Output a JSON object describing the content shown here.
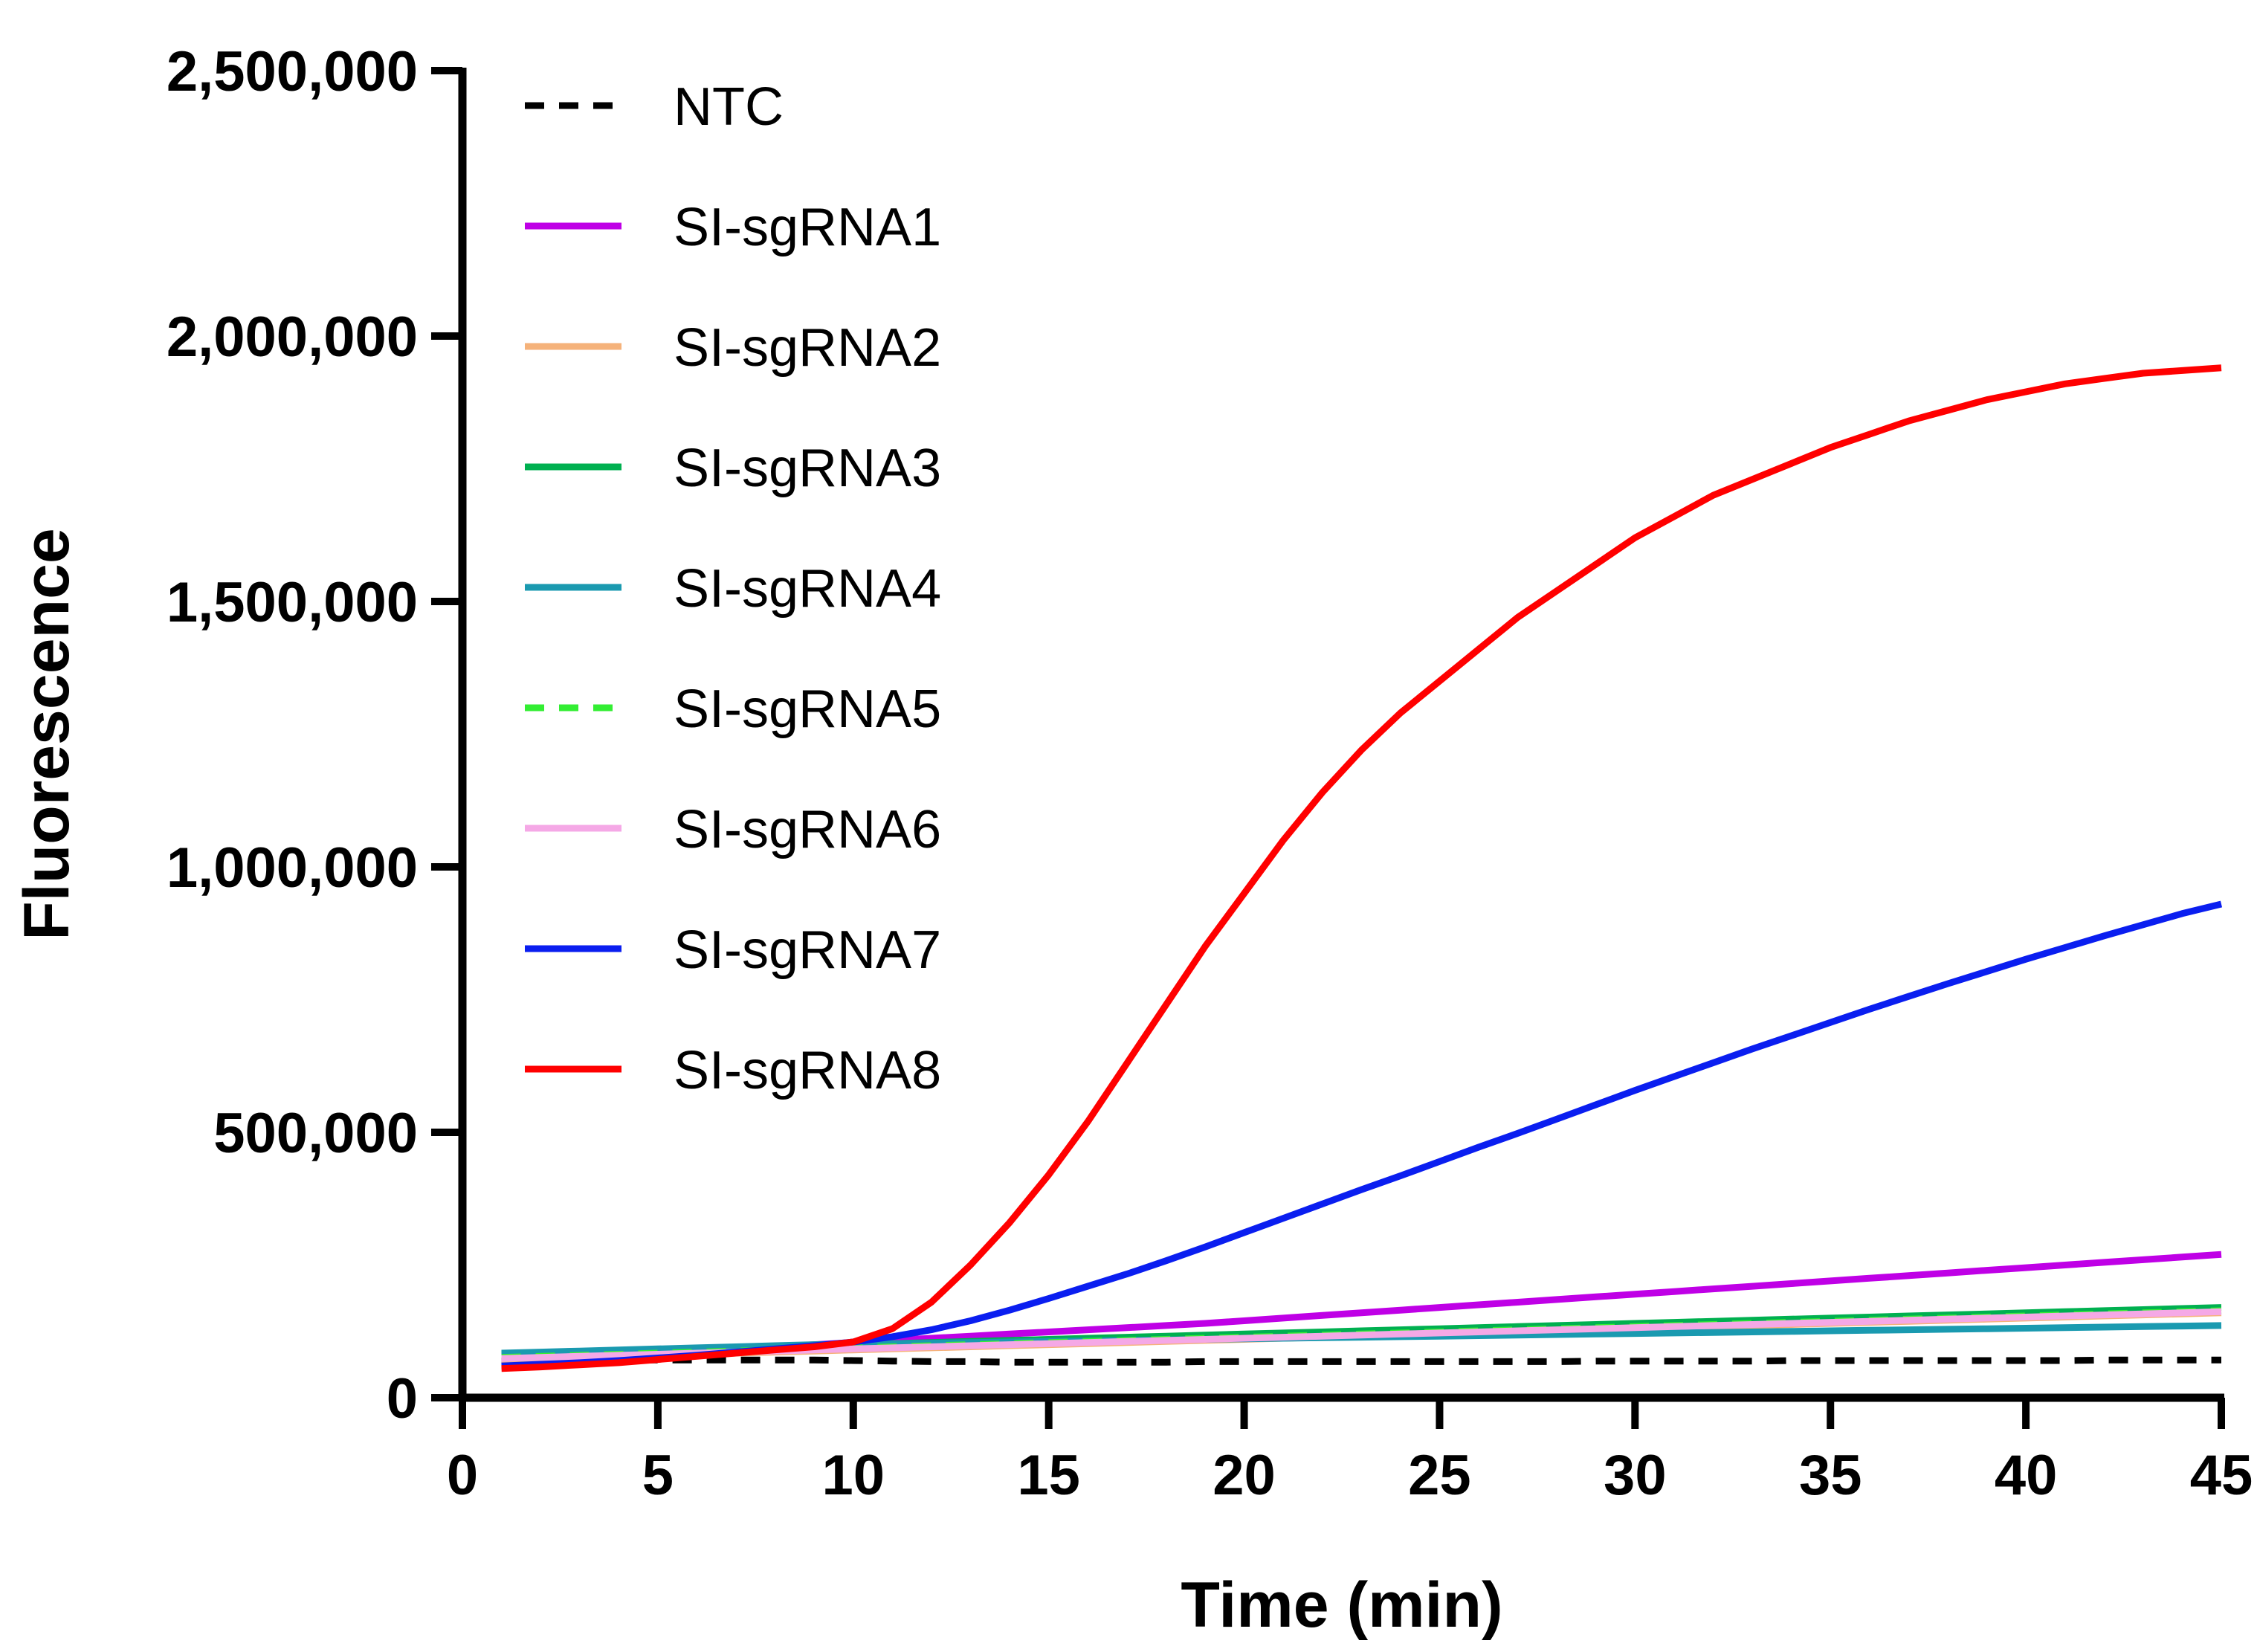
{
  "chart_data": {
    "type": "line",
    "title": "",
    "xlabel": "Time (min)",
    "ylabel": "Fluorescence",
    "xlim": [
      0,
      45
    ],
    "ylim": [
      0,
      2500000
    ],
    "xticks": [
      0,
      5,
      10,
      15,
      20,
      25,
      30,
      35,
      40,
      45
    ],
    "xtick_labels": [
      "0",
      "5",
      "10",
      "15",
      "20",
      "25",
      "30",
      "35",
      "40",
      "45"
    ],
    "yticks": [
      0,
      500000,
      1000000,
      1500000,
      2000000,
      2500000
    ],
    "ytick_labels": [
      "0",
      "500,000",
      "1,000,000",
      "1,500,000",
      "2,000,000",
      "2,500,000"
    ],
    "grid": false,
    "legend_position": "top-left",
    "x": [
      1,
      2,
      3,
      4,
      5,
      6,
      7,
      8,
      9,
      10,
      11,
      12,
      13,
      14,
      15,
      16,
      17,
      18,
      19,
      20,
      21,
      22,
      23,
      24,
      25,
      26,
      27,
      28,
      29,
      30,
      31,
      32,
      33,
      34,
      35,
      36,
      37,
      38,
      39,
      40,
      41,
      42,
      43,
      44,
      45
    ],
    "series": [
      {
        "name": "NTC",
        "color": "#000000",
        "dashed": true,
        "values": [
          70000,
          70000,
          70500,
          71000,
          71000,
          71000,
          71000,
          71000,
          71000,
          70000,
          69000,
          68000,
          68000,
          67000,
          67000,
          67000,
          67000,
          67000,
          68000,
          68000,
          68000,
          68000,
          68000,
          68000,
          68000,
          68000,
          68000,
          68000,
          69000,
          69000,
          69000,
          69000,
          69000,
          70000,
          70000,
          70000,
          70000,
          70000,
          70000,
          70000,
          70000,
          71000,
          71000,
          71000,
          71000
        ]
      },
      {
        "name": "SI-sgRNA1",
        "color": "#bf00e6",
        "dashed": false,
        "values": [
          68000,
          72000,
          76000,
          80000,
          84000,
          88000,
          92000,
          96000,
          100000,
          104000,
          108000,
          112000,
          116000,
          120000,
          124000,
          128000,
          132000,
          136000,
          140000,
          145000,
          150000,
          155000,
          160000,
          165000,
          170000,
          175000,
          180000,
          185000,
          190000,
          195000,
          200000,
          205000,
          210000,
          215000,
          220000,
          225000,
          230000,
          235000,
          240000,
          245000,
          250000,
          255000,
          260000,
          265000,
          270000
        ]
      },
      {
        "name": "SI-sgRNA2",
        "color": "#f5b27a",
        "dashed": false,
        "values": [
          72000,
          74000,
          76000,
          78000,
          80000,
          82000,
          84000,
          86000,
          88000,
          90000,
          92000,
          94000,
          96000,
          98000,
          100000,
          102000,
          104000,
          106000,
          108000,
          110000,
          112000,
          114000,
          116000,
          118000,
          120000,
          122000,
          124000,
          126000,
          128000,
          130000,
          132000,
          134000,
          136000,
          138000,
          140000,
          142000,
          144000,
          146000,
          148000,
          150000,
          152000,
          154000,
          156000,
          158000,
          160000
        ]
      },
      {
        "name": "SI-sgRNA3",
        "color": "#00b050",
        "dashed": false,
        "values": [
          82000,
          84000,
          86000,
          88000,
          90000,
          92000,
          94000,
          96000,
          98000,
          100000,
          102000,
          104000,
          106000,
          108000,
          110000,
          112000,
          114000,
          116000,
          118000,
          120000,
          122000,
          124000,
          126000,
          128000,
          130000,
          132000,
          134000,
          136000,
          138000,
          140000,
          142000,
          144000,
          146000,
          148000,
          150000,
          152000,
          154000,
          156000,
          158000,
          160000,
          162000,
          164000,
          166000,
          168000,
          170000
        ]
      },
      {
        "name": "SI-sgRNA4",
        "color": "#1a9ab0",
        "dashed": false,
        "values": [
          84000,
          86000,
          88000,
          90000,
          92000,
          94000,
          96000,
          98000,
          100000,
          101000,
          102000,
          103000,
          104000,
          105000,
          106000,
          107000,
          108000,
          109000,
          110000,
          111000,
          112000,
          113000,
          114000,
          115000,
          116000,
          117000,
          118000,
          119000,
          120000,
          121000,
          122000,
          123000,
          124000,
          125000,
          126000,
          127000,
          128000,
          129000,
          130000,
          131000,
          132000,
          133000,
          134000,
          135000,
          136000
        ]
      },
      {
        "name": "SI-sgRNA5",
        "color": "#33ee33",
        "dashed": true,
        "values": [
          76000,
          78000,
          80000,
          82000,
          84000,
          86000,
          88000,
          90000,
          92000,
          94000,
          96000,
          98000,
          100000,
          102000,
          104000,
          106000,
          108000,
          110000,
          112000,
          114000,
          116000,
          118000,
          120000,
          122000,
          124000,
          126000,
          128000,
          130000,
          132000,
          134000,
          136000,
          138000,
          140000,
          142000,
          144000,
          146000,
          148000,
          150000,
          152000,
          154000,
          156000,
          158000,
          160000,
          162000,
          164000
        ]
      },
      {
        "name": "SI-sgRNA6",
        "color": "#f5a8e6",
        "dashed": false,
        "values": [
          74000,
          76000,
          78000,
          80000,
          82000,
          84000,
          86000,
          88000,
          90000,
          92000,
          94000,
          96000,
          98000,
          100000,
          102000,
          104000,
          106000,
          108000,
          110000,
          112000,
          114000,
          116000,
          118000,
          120000,
          122000,
          124000,
          126000,
          128000,
          130000,
          132000,
          134000,
          136000,
          138000,
          140000,
          142000,
          144000,
          146000,
          148000,
          150000,
          152000,
          154000,
          156000,
          158000,
          160000,
          162000
        ]
      },
      {
        "name": "SI-sgRNA7",
        "color": "#0a1ef0",
        "dashed": false,
        "values": [
          60000,
          63000,
          66000,
          70000,
          75000,
          80000,
          86000,
          92000,
          98000,
          105000,
          115000,
          128000,
          145000,
          165000,
          187000,
          210000,
          233000,
          258000,
          284000,
          311000,
          338000,
          365000,
          392000,
          418000,
          445000,
          472000,
          498000,
          525000,
          552000,
          579000,
          605000,
          631000,
          657000,
          682000,
          707000,
          732000,
          756000,
          780000,
          803000,
          826000,
          848000,
          870000,
          891000,
          912000,
          930000
        ]
      },
      {
        "name": "SI-sgRNA8",
        "color": "#ff0000",
        "dashed": false,
        "values": [
          55000,
          58000,
          62000,
          66000,
          72000,
          78000,
          84000,
          90000,
          96000,
          105000,
          130000,
          180000,
          250000,
          330000,
          420000,
          520000,
          630000,
          740000,
          850000,
          950000,
          1050000,
          1140000,
          1220000,
          1290000,
          1350000,
          1410000,
          1470000,
          1520000,
          1570000,
          1620000,
          1660000,
          1700000,
          1730000,
          1760000,
          1790000,
          1815000,
          1840000,
          1860000,
          1880000,
          1895000,
          1910000,
          1920000,
          1930000,
          1935000,
          1940000
        ]
      }
    ]
  }
}
